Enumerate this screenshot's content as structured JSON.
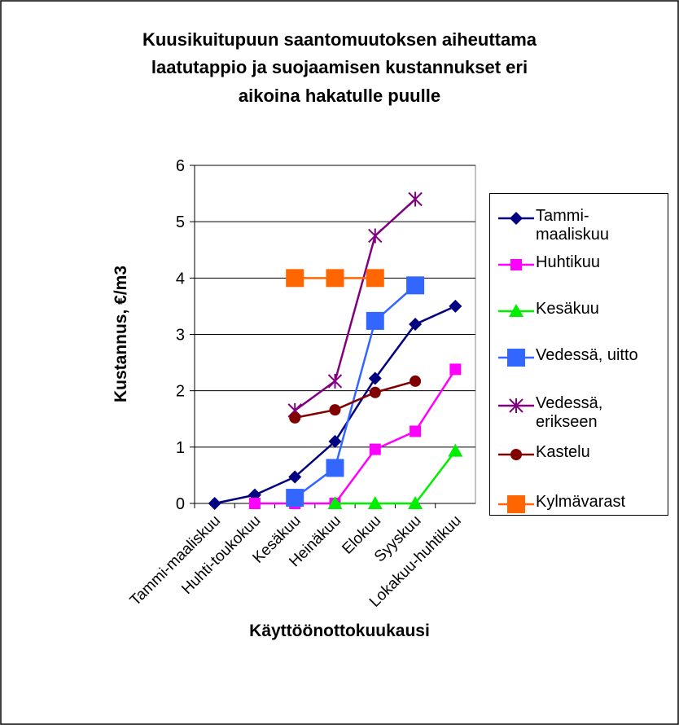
{
  "chart_data": {
    "type": "line",
    "title": [
      "Kuusikuitupuun saantomuutoksen aiheuttama",
      "laatutappio ja suojaamisen kustannukset eri",
      "aikoina hakatulle puulle"
    ],
    "x_label": "Käyttöönottokuukausi",
    "y_label": "Kustannus, €/m3",
    "categories": [
      "Tammi-maaliskuu",
      "Huhti-toukokuu",
      "Kesäkuu",
      "Heinäkuu",
      "Elokuu",
      "Syyskuu",
      "Lokakuu-huhtikuu"
    ],
    "ylim": [
      0,
      6
    ],
    "yticks": [
      0,
      1,
      2,
      3,
      4,
      5,
      6
    ],
    "grid": true,
    "legend": "right",
    "series": [
      {
        "name": "Tammi-maaliskuu",
        "color": "#000080",
        "marker": "diamond",
        "values": [
          0,
          0.15,
          0.47,
          1.1,
          2.22,
          3.18,
          3.5
        ]
      },
      {
        "name": "Huhtikuu",
        "color": "#ff00ff",
        "marker": "square",
        "values": [
          null,
          0,
          0,
          0,
          0.96,
          1.28,
          2.38
        ]
      },
      {
        "name": "Kesäkuu",
        "color": "#00ee00",
        "marker": "triangle",
        "values": [
          null,
          null,
          null,
          0,
          0,
          0,
          0.93
        ]
      },
      {
        "name": "Vedessä, uitto",
        "color": "#3366ff",
        "marker": "bigsquare",
        "values": [
          null,
          null,
          0.1,
          0.63,
          3.24,
          3.87,
          null
        ]
      },
      {
        "name": "Vedessä, erikseen",
        "color": "#800080",
        "marker": "star",
        "values": [
          null,
          null,
          1.65,
          2.17,
          4.75,
          5.4,
          null
        ]
      },
      {
        "name": "Kastelu",
        "color": "#800000",
        "marker": "circle",
        "values": [
          null,
          null,
          1.52,
          1.66,
          1.97,
          2.17,
          null
        ]
      },
      {
        "name": "Kylmävarast",
        "color": "#ff6600",
        "marker": "bigsquare",
        "values": [
          null,
          null,
          4,
          4,
          4,
          null,
          null
        ]
      }
    ]
  }
}
